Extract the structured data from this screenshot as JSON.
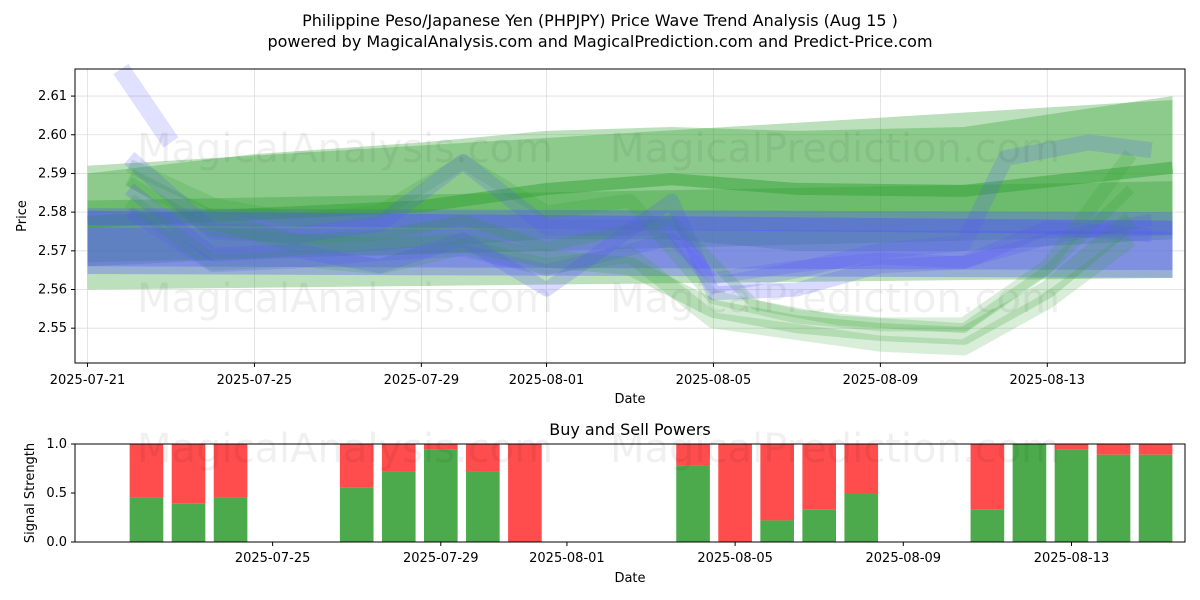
{
  "title_line1": "Philippine Peso/Japanese Yen (PHPJPY) Price Wave Trend Analysis (Aug 15 )",
  "title_line2": "powered by MagicalAnalysis.com and MagicalPrediction.com and Predict-Price.com",
  "watermarks": [
    "MagicalAnalysis.com",
    "MagicalPrediction.com"
  ],
  "colors": {
    "green": "#2ca02c",
    "blue": "#5555ff",
    "buy": "#4caa4c",
    "sell": "#ff4d4d"
  },
  "chart_data": [
    {
      "type": "line",
      "xlabel": "Date",
      "ylabel": "Price",
      "xlim": [
        "2025-07-21",
        "2025-08-16"
      ],
      "ylim": [
        2.541,
        2.617
      ],
      "x_ticks": [
        "2025-07-21",
        "2025-07-25",
        "2025-07-29",
        "2025-08-01",
        "2025-08-05",
        "2025-08-09",
        "2025-08-13"
      ],
      "y_ticks": [
        2.55,
        2.56,
        2.57,
        2.58,
        2.59,
        2.6,
        2.61
      ],
      "grid": true,
      "bands": [
        {
          "color": "green",
          "x": [
            "2025-07-21",
            "2025-08-16"
          ],
          "upper": [
            2.592,
            2.609
          ],
          "lower": [
            2.567,
            2.574
          ]
        },
        {
          "color": "green",
          "x": [
            "2025-07-21",
            "2025-07-25",
            "2025-07-29",
            "2025-08-01",
            "2025-08-04",
            "2025-08-07",
            "2025-08-11",
            "2025-08-16"
          ],
          "upper": [
            2.59,
            2.595,
            2.598,
            2.601,
            2.602,
            2.601,
            2.602,
            2.61
          ],
          "lower": [
            2.566,
            2.568,
            2.571,
            2.573,
            2.573,
            2.57,
            2.57,
            2.573
          ]
        },
        {
          "color": "green",
          "x": [
            "2025-07-21",
            "2025-08-16"
          ],
          "upper": [
            2.583,
            2.588
          ],
          "lower": [
            2.56,
            2.563
          ]
        },
        {
          "color": "blue",
          "x": [
            "2025-07-21",
            "2025-08-16"
          ],
          "upper": [
            2.581,
            2.58
          ],
          "lower": [
            2.564,
            2.563
          ]
        },
        {
          "color": "blue",
          "x": [
            "2025-07-21",
            "2025-08-16"
          ],
          "upper": [
            2.576,
            2.575
          ],
          "lower": [
            2.566,
            2.565
          ]
        }
      ],
      "series": [
        {
          "color": "green",
          "x": [
            "2025-07-21",
            "2025-07-25",
            "2025-07-29",
            "2025-08-01",
            "2025-08-04",
            "2025-08-07",
            "2025-08-11",
            "2025-08-16"
          ],
          "y": [
            2.5775,
            2.5795,
            2.5815,
            2.586,
            2.5885,
            2.586,
            2.5855,
            2.5915
          ],
          "width": 12,
          "opacity": 0.45
        },
        {
          "color": "blue",
          "x": [
            "2025-07-21",
            "2025-08-16"
          ],
          "y": [
            2.5785,
            2.576
          ],
          "width": 14,
          "opacity": 0.45
        },
        {
          "color": "green",
          "x": [
            "2025-07-22",
            "2025-07-24",
            "2025-07-26",
            "2025-07-28",
            "2025-07-30",
            "2025-08-01",
            "2025-08-03",
            "2025-08-05",
            "2025-08-07",
            "2025-08-09",
            "2025-08-11",
            "2025-08-13",
            "2025-08-15"
          ],
          "y": [
            2.589,
            2.578,
            2.572,
            2.571,
            2.572,
            2.568,
            2.566,
            2.555,
            2.551,
            2.549,
            2.548,
            2.56,
            2.578
          ],
          "width": 18,
          "opacity": 0.22
        },
        {
          "color": "green",
          "x": [
            "2025-07-22",
            "2025-07-24",
            "2025-07-26",
            "2025-07-28",
            "2025-07-30",
            "2025-08-01",
            "2025-08-03",
            "2025-08-05",
            "2025-08-07",
            "2025-08-09",
            "2025-08-11",
            "2025-08-13",
            "2025-08-15"
          ],
          "y": [
            2.583,
            2.567,
            2.568,
            2.566,
            2.571,
            2.566,
            2.569,
            2.552,
            2.549,
            2.546,
            2.545,
            2.557,
            2.573
          ],
          "width": 16,
          "opacity": 0.18
        },
        {
          "color": "green",
          "x": [
            "2025-07-22",
            "2025-07-24",
            "2025-07-26",
            "2025-07-28",
            "2025-07-30",
            "2025-08-01",
            "2025-08-03",
            "2025-08-05",
            "2025-08-07",
            "2025-08-09",
            "2025-08-11",
            "2025-08-13",
            "2025-08-15"
          ],
          "y": [
            2.592,
            2.582,
            2.578,
            2.58,
            2.593,
            2.58,
            2.583,
            2.558,
            2.553,
            2.551,
            2.551,
            2.566,
            2.595
          ],
          "width": 14,
          "opacity": 0.18
        },
        {
          "color": "green",
          "x": [
            "2025-07-22",
            "2025-07-24",
            "2025-07-26",
            "2025-07-28",
            "2025-07-30",
            "2025-08-01",
            "2025-08-04",
            "2025-08-06",
            "2025-08-08",
            "2025-08-11",
            "2025-08-13",
            "2025-08-15"
          ],
          "y": [
            2.588,
            2.575,
            2.573,
            2.574,
            2.578,
            2.571,
            2.578,
            2.556,
            2.552,
            2.55,
            2.565,
            2.586
          ],
          "width": 10,
          "opacity": 0.2
        },
        {
          "color": "blue",
          "x": [
            "2025-07-21.8",
            "2025-07-23"
          ],
          "y": [
            2.617,
            2.598
          ],
          "width": 18,
          "opacity": 0.18
        },
        {
          "color": "blue",
          "x": [
            "2025-07-22",
            "2025-07-24",
            "2025-07-26",
            "2025-07-28",
            "2025-07-30",
            "2025-08-01",
            "2025-08-04",
            "2025-08-05",
            "2025-08-07",
            "2025-08-09",
            "2025-08-11",
            "2025-08-12",
            "2025-08-14",
            "2025-08-15.5"
          ],
          "y": [
            2.594,
            2.575,
            2.574,
            2.577,
            2.593,
            2.576,
            2.576,
            2.561,
            2.565,
            2.57,
            2.572,
            2.594,
            2.598,
            2.596
          ],
          "width": 16,
          "opacity": 0.2
        },
        {
          "color": "blue",
          "x": [
            "2025-07-22",
            "2025-07-24",
            "2025-07-26",
            "2025-07-28",
            "2025-07-30",
            "2025-08-01",
            "2025-08-04",
            "2025-08-05",
            "2025-08-07",
            "2025-08-09",
            "2025-08-11",
            "2025-08-13",
            "2025-08-15.5"
          ],
          "y": [
            2.586,
            2.569,
            2.57,
            2.566,
            2.573,
            2.56,
            2.583,
            2.559,
            2.56,
            2.566,
            2.567,
            2.576,
            2.574
          ],
          "width": 14,
          "opacity": 0.22
        },
        {
          "color": "blue",
          "x": [
            "2025-07-22",
            "2025-07-24",
            "2025-07-26",
            "2025-07-28",
            "2025-07-30",
            "2025-08-01",
            "2025-08-04",
            "2025-08-05",
            "2025-08-07",
            "2025-08-09",
            "2025-08-11",
            "2025-08-13",
            "2025-08-15.5"
          ],
          "y": [
            2.58,
            2.566,
            2.567,
            2.569,
            2.57,
            2.565,
            2.573,
            2.563,
            2.566,
            2.568,
            2.567,
            2.573,
            2.578
          ],
          "width": 12,
          "opacity": 0.2
        }
      ]
    },
    {
      "type": "bar",
      "title": "Buy and Sell Powers",
      "xlabel": "Date",
      "ylabel": "Signal Strength",
      "ylim": [
        0,
        1
      ],
      "y_ticks": [
        "0.0",
        "0.5",
        "1.0"
      ],
      "x_ticks": [
        "2025-07-25",
        "2025-07-29",
        "2025-08-01",
        "2025-08-05",
        "2025-08-09",
        "2025-08-13"
      ],
      "dates": [
        "2025-07-22",
        "2025-07-23",
        "2025-07-24",
        "2025-07-27",
        "2025-07-28",
        "2025-07-29",
        "2025-07-30",
        "2025-07-31",
        "2025-08-04",
        "2025-08-05",
        "2025-08-06",
        "2025-08-07",
        "2025-08-08",
        "2025-08-11",
        "2025-08-12",
        "2025-08-13",
        "2025-08-14",
        "2025-08-15"
      ],
      "buy": [
        0.45,
        0.39,
        0.45,
        0.56,
        0.72,
        0.94,
        0.72,
        0.0,
        0.78,
        0.0,
        0.22,
        0.33,
        0.5,
        0.33,
        1.0,
        0.94,
        0.89,
        0.89
      ]
    }
  ]
}
